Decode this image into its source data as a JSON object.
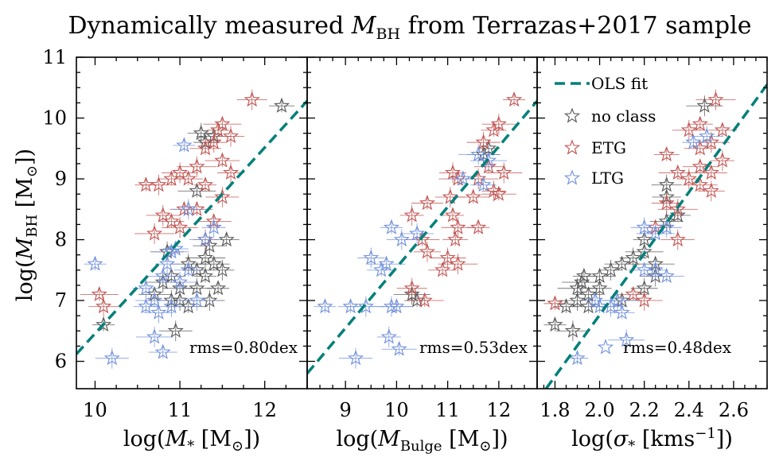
{
  "figure": {
    "title_text": "Dynamically measured ",
    "title_symbol": "M",
    "title_sub": "BH",
    "title_rest": " from Terrazas+2017 sample",
    "ylabel_pre": "log(",
    "ylabel_symbol": "M",
    "ylabel_sub": "BH",
    "ylabel_unit": " [M",
    "ylabel_unit_sub": "⊙",
    "ylabel_post": "])",
    "legend": {
      "fit": "OLS fit",
      "noclass": "no class",
      "etg": "ETG",
      "ltg": "LTG",
      "placement": "upper-left of third panel"
    },
    "colors": {
      "noclass": "#555555",
      "etg": "#c0504d",
      "ltg": "#6f8fdc",
      "fit": "#00807a"
    }
  },
  "chart_data": [
    {
      "type": "scatter",
      "panel": "stellar-mass",
      "xlabel_pre": "log(",
      "xlabel_symbol": "M",
      "xlabel_sub": "*",
      "xlabel_unit": " [M",
      "xlabel_unit_sub": "⊙",
      "xlabel_post": "])",
      "xlim": [
        9.78,
        12.5
      ],
      "ylim": [
        5.55,
        11.0
      ],
      "xticks": [
        "10",
        "11",
        "12"
      ],
      "yticks": [
        "6",
        "7",
        "8",
        "9",
        "10",
        "11"
      ],
      "rms_label": "rms=0.80dex",
      "fit": [
        [
          9.78,
          6.12
        ],
        [
          12.5,
          10.28
        ]
      ],
      "series": [
        {
          "name": "no class",
          "points": [
            [
              10.1,
              6.6
            ],
            [
              10.95,
              6.5
            ],
            [
              12.2,
              10.2
            ],
            [
              11.1,
              7.6
            ],
            [
              11.2,
              7.5
            ],
            [
              11.3,
              7.7
            ],
            [
              11.4,
              7.6
            ],
            [
              11.5,
              7.5
            ],
            [
              11.0,
              7.2
            ],
            [
              10.9,
              7.0
            ],
            [
              11.1,
              6.9
            ],
            [
              11.2,
              7.2
            ],
            [
              11.3,
              7.4
            ],
            [
              11.35,
              7.9
            ],
            [
              11.55,
              8.0
            ],
            [
              10.8,
              7.3
            ],
            [
              10.9,
              7.4
            ],
            [
              11.0,
              7.0
            ],
            [
              10.7,
              7.1
            ],
            [
              11.3,
              9.6
            ],
            [
              11.4,
              9.7
            ],
            [
              11.25,
              9.75
            ],
            [
              11.2,
              8.8
            ],
            [
              11.35,
              7.0
            ],
            [
              11.45,
              7.2
            ],
            [
              10.85,
              7.8
            ]
          ]
        },
        {
          "name": "ETG",
          "points": [
            [
              10.6,
              8.9
            ],
            [
              10.75,
              8.9
            ],
            [
              10.9,
              9.0
            ],
            [
              11.0,
              9.1
            ],
            [
              11.1,
              9.0
            ],
            [
              11.2,
              9.2
            ],
            [
              11.3,
              9.5
            ],
            [
              11.4,
              9.6
            ],
            [
              11.5,
              9.3
            ],
            [
              11.6,
              9.7
            ],
            [
              11.5,
              9.9
            ],
            [
              11.85,
              10.3
            ],
            [
              11.45,
              9.8
            ],
            [
              10.8,
              8.4
            ],
            [
              10.9,
              8.3
            ],
            [
              11.0,
              8.2
            ],
            [
              11.05,
              8.5
            ],
            [
              10.7,
              8.1
            ],
            [
              11.2,
              8.5
            ],
            [
              11.3,
              8.0
            ],
            [
              11.4,
              8.3
            ],
            [
              11.6,
              9.1
            ],
            [
              10.05,
              7.1
            ],
            [
              10.1,
              6.9
            ],
            [
              11.3,
              8.9
            ],
            [
              11.5,
              8.7
            ]
          ]
        },
        {
          "name": "LTG",
          "points": [
            [
              10.0,
              7.6
            ],
            [
              10.2,
              6.05
            ],
            [
              10.6,
              6.9
            ],
            [
              10.7,
              6.4
            ],
            [
              10.8,
              6.15
            ],
            [
              10.9,
              6.9
            ],
            [
              10.8,
              7.4
            ],
            [
              10.85,
              7.6
            ],
            [
              10.9,
              7.8
            ],
            [
              10.6,
              7.2
            ],
            [
              10.7,
              7.0
            ],
            [
              10.75,
              6.8
            ],
            [
              11.05,
              9.55
            ],
            [
              11.1,
              8.5
            ],
            [
              10.95,
              7.85
            ],
            [
              11.0,
              7.3
            ],
            [
              11.1,
              7.5
            ],
            [
              11.2,
              7.0
            ],
            [
              11.3,
              8.0
            ],
            [
              11.4,
              8.2
            ]
          ]
        }
      ]
    },
    {
      "type": "scatter",
      "panel": "bulge-mass",
      "xlabel_pre": "log(",
      "xlabel_symbol": "M",
      "xlabel_sub": "Bulge",
      "xlabel_unit": " [M",
      "xlabel_unit_sub": "⊙",
      "xlabel_post": "])",
      "xlim": [
        8.25,
        12.75
      ],
      "ylim": [
        5.55,
        11.0
      ],
      "xticks": [
        "9",
        "10",
        "11",
        "12"
      ],
      "rms_label": "rms=0.53dex",
      "fit": [
        [
          8.25,
          5.8
        ],
        [
          12.75,
          10.28
        ]
      ],
      "series": [
        {
          "name": "no class",
          "points": [
            [
              11.8,
              9.5
            ],
            [
              11.7,
              9.4
            ],
            [
              10.4,
              7.0
            ],
            [
              10.3,
              7.1
            ]
          ]
        },
        {
          "name": "ETG",
          "points": [
            [
              12.3,
              10.3
            ],
            [
              12.0,
              9.9
            ],
            [
              11.9,
              9.8
            ],
            [
              12.1,
              9.1
            ],
            [
              11.8,
              9.2
            ],
            [
              11.6,
              9.0
            ],
            [
              11.5,
              8.7
            ],
            [
              11.9,
              8.8
            ],
            [
              12.0,
              8.75
            ],
            [
              11.1,
              9.1
            ],
            [
              11.2,
              9.0
            ],
            [
              11.05,
              8.7
            ],
            [
              11.1,
              8.4
            ],
            [
              11.2,
              8.2
            ],
            [
              11.15,
              8.0
            ],
            [
              11.0,
              7.7
            ],
            [
              10.9,
              7.5
            ],
            [
              11.2,
              7.6
            ],
            [
              10.6,
              8.6
            ],
            [
              10.3,
              8.4
            ],
            [
              10.5,
              8.0
            ],
            [
              10.6,
              7.8
            ],
            [
              10.55,
              7.0
            ],
            [
              10.3,
              7.2
            ],
            [
              11.6,
              8.2
            ],
            [
              11.7,
              9.6
            ]
          ]
        },
        {
          "name": "LTG",
          "points": [
            [
              8.6,
              6.9
            ],
            [
              9.2,
              6.05
            ],
            [
              9.1,
              6.9
            ],
            [
              9.4,
              6.9
            ],
            [
              9.7,
              7.5
            ],
            [
              9.9,
              6.9
            ],
            [
              10.0,
              6.9
            ],
            [
              9.85,
              6.4
            ],
            [
              10.05,
              6.2
            ],
            [
              9.5,
              7.7
            ],
            [
              9.8,
              7.6
            ],
            [
              10.1,
              8.0
            ],
            [
              9.9,
              8.2
            ],
            [
              10.4,
              8.1
            ],
            [
              11.7,
              8.9
            ],
            [
              11.8,
              9.3
            ],
            [
              11.3,
              9.0
            ],
            [
              11.6,
              9.4
            ]
          ]
        }
      ]
    },
    {
      "type": "scatter",
      "panel": "velocity-dispersion",
      "xlabel_pre": "log(",
      "xlabel_symbol": "σ",
      "xlabel_sub": "*",
      "xlabel_unit": " [kms",
      "xlabel_unit_sup": "−1",
      "xlabel_post": "])",
      "xlim": [
        1.72,
        2.75
      ],
      "ylim": [
        5.55,
        11.0
      ],
      "xticks": [
        "1.8",
        "2.0",
        "2.2",
        "2.4",
        "2.6"
      ],
      "rms_label": "rms=0.48dex",
      "fit": [
        [
          1.76,
          5.55
        ],
        [
          2.75,
          10.55
        ]
      ],
      "series": [
        {
          "name": "no class",
          "points": [
            [
              1.8,
              6.6
            ],
            [
              1.88,
              6.5
            ],
            [
              1.85,
              6.9
            ],
            [
              1.9,
              7.0
            ],
            [
              1.95,
              7.1
            ],
            [
              1.92,
              7.3
            ],
            [
              2.0,
              7.4
            ],
            [
              2.05,
              7.5
            ],
            [
              2.1,
              7.6
            ],
            [
              2.15,
              7.7
            ],
            [
              2.2,
              7.8
            ],
            [
              2.25,
              7.4
            ],
            [
              2.2,
              8.0
            ],
            [
              2.3,
              8.3
            ],
            [
              2.35,
              8.4
            ],
            [
              2.47,
              10.2
            ],
            [
              2.3,
              8.7
            ],
            [
              1.9,
              7.2
            ],
            [
              1.95,
              6.9
            ],
            [
              2.0,
              7.2
            ],
            [
              2.1,
              7.0
            ],
            [
              2.2,
              7.2
            ],
            [
              2.25,
              7.6
            ],
            [
              2.3,
              8.9
            ],
            [
              1.93,
              7.4
            ]
          ]
        },
        {
          "name": "ETG",
          "points": [
            [
              1.8,
              6.95
            ],
            [
              2.4,
              9.8
            ],
            [
              2.45,
              9.9
            ],
            [
              2.5,
              9.6
            ],
            [
              2.55,
              9.8
            ],
            [
              2.52,
              10.3
            ],
            [
              2.45,
              9.5
            ],
            [
              2.4,
              9.0
            ],
            [
              2.45,
              8.9
            ],
            [
              2.5,
              8.8
            ],
            [
              2.35,
              9.1
            ],
            [
              2.3,
              8.6
            ],
            [
              2.25,
              8.2
            ],
            [
              2.35,
              8.0
            ],
            [
              2.3,
              9.4
            ],
            [
              2.2,
              7.0
            ],
            [
              2.15,
              7.1
            ],
            [
              2.35,
              8.5
            ],
            [
              2.5,
              9.1
            ],
            [
              2.55,
              9.3
            ],
            [
              2.45,
              9.2
            ]
          ]
        },
        {
          "name": "LTG",
          "points": [
            [
              1.9,
              6.05
            ],
            [
              2.05,
              6.9
            ],
            [
              2.1,
              6.8
            ],
            [
              2.12,
              6.35
            ],
            [
              2.0,
              6.9
            ],
            [
              2.08,
              7.0
            ],
            [
              2.2,
              7.5
            ],
            [
              2.25,
              7.5
            ],
            [
              2.3,
              7.4
            ],
            [
              2.2,
              8.2
            ],
            [
              2.25,
              8.1
            ],
            [
              2.3,
              8.2
            ],
            [
              2.42,
              9.6
            ],
            [
              2.48,
              9.7
            ],
            [
              1.98,
              7.0
            ]
          ]
        }
      ]
    }
  ]
}
